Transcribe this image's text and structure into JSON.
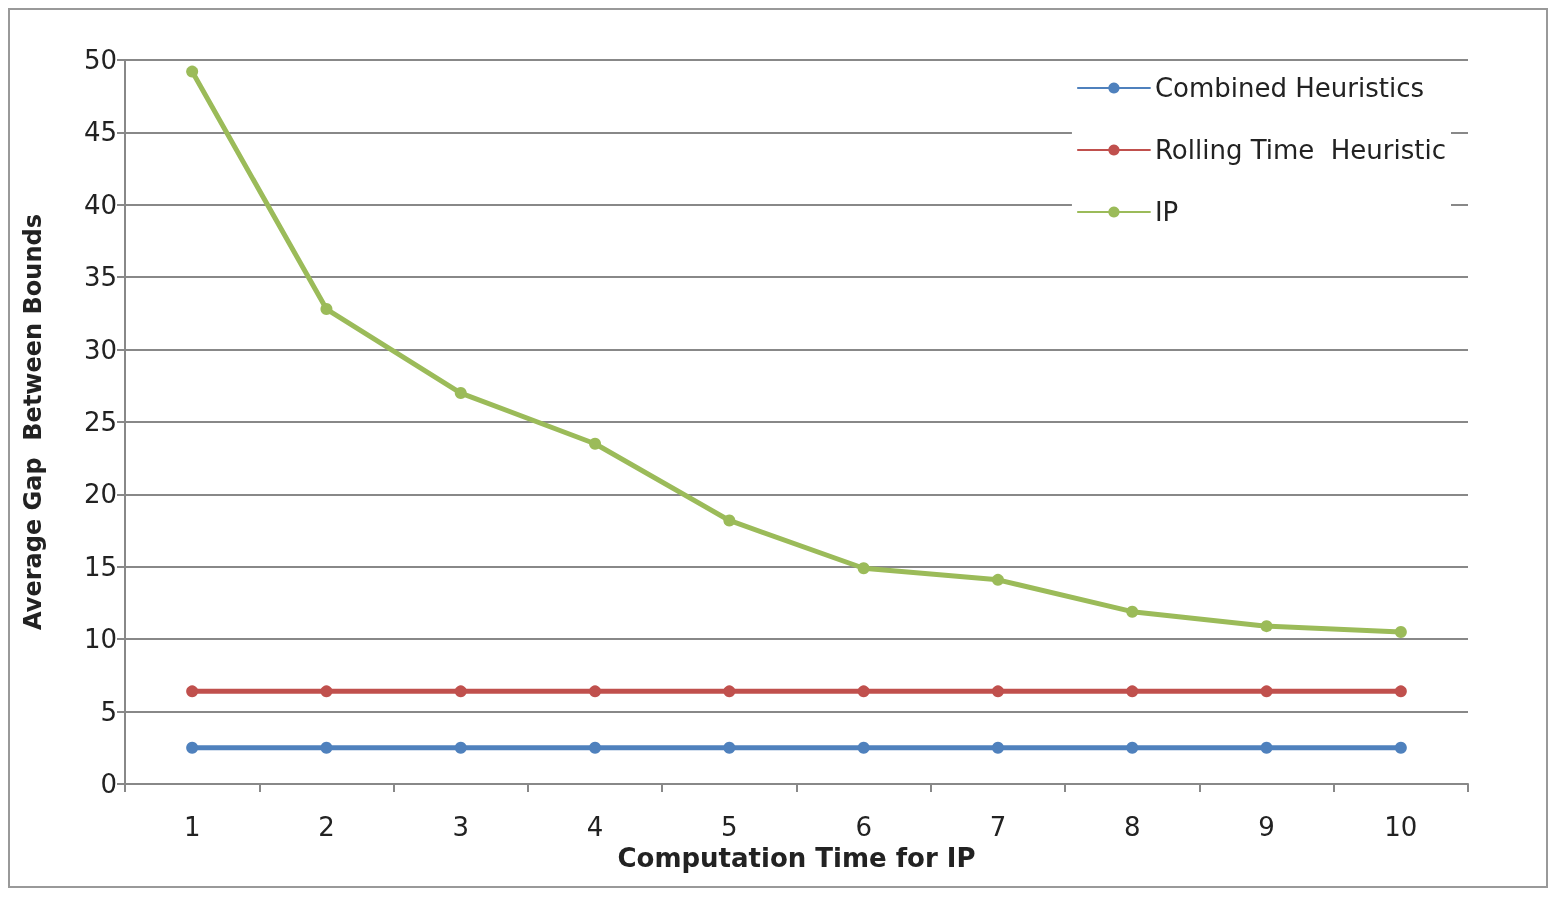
{
  "chart_data": {
    "type": "line",
    "xlabel": "Computation Time for IP",
    "ylabel": "Average Gap  Between Bounds",
    "categories": [
      "1",
      "2",
      "3",
      "4",
      "5",
      "6",
      "7",
      "8",
      "9",
      "10"
    ],
    "series": [
      {
        "name": "Combined Heuristics",
        "color": "#4f81bd",
        "values": [
          2.5,
          2.5,
          2.5,
          2.5,
          2.5,
          2.5,
          2.5,
          2.5,
          2.5,
          2.5
        ]
      },
      {
        "name": "Rolling Time  Heuristic",
        "color": "#c0504d",
        "values": [
          6.4,
          6.4,
          6.4,
          6.4,
          6.4,
          6.4,
          6.4,
          6.4,
          6.4,
          6.4
        ]
      },
      {
        "name": "IP",
        "color": "#9bbb59",
        "values": [
          49.2,
          32.8,
          27.0,
          23.5,
          18.2,
          14.9,
          14.1,
          11.9,
          10.9,
          10.5
        ]
      }
    ],
    "ylim": [
      0,
      50
    ],
    "yticks": [
      0,
      5,
      10,
      15,
      20,
      25,
      30,
      35,
      40,
      45,
      50
    ],
    "grid": "y",
    "legend": "top right",
    "marker": "circle",
    "line_style": "solid"
  }
}
